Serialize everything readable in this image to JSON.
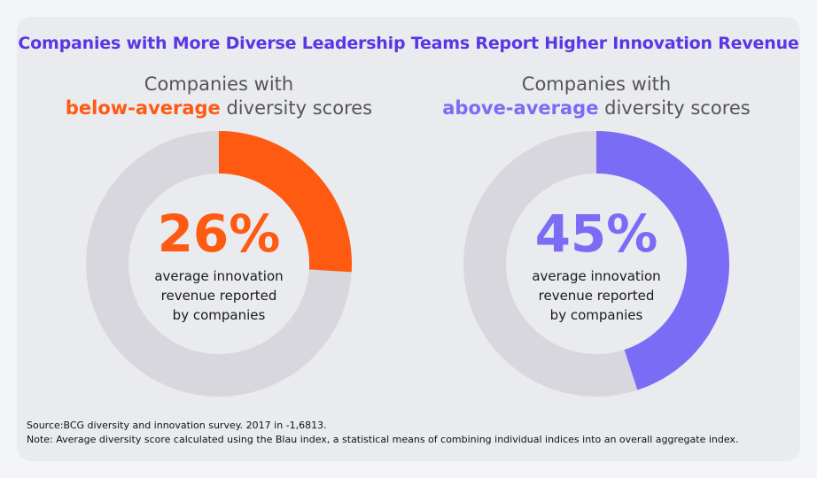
{
  "title": "Companies with More Diverse Leadership Teams Report Higher Innovation Revenue",
  "colors": {
    "title": "#5b36e6",
    "below": "#ff5a12",
    "above": "#7b6cf6",
    "track": "#d8d7dd",
    "hole": "#e9ebef"
  },
  "panels": [
    {
      "heading_line1": "Companies with",
      "highlight": "below-average",
      "heading_rest": " diversity scores",
      "value_label": "26%",
      "description": [
        "average innovation",
        "revenue reported",
        "by companies"
      ]
    },
    {
      "heading_line1": "Companies with",
      "highlight": "above-average",
      "heading_rest": " diversity scores",
      "value_label": "45%",
      "description": [
        "average innovation",
        "revenue reported",
        "by companies"
      ]
    }
  ],
  "chart_data": [
    {
      "type": "pie",
      "variant": "donut",
      "labels": [
        "below-average diversity scores"
      ],
      "values": [
        26
      ],
      "unit": "%",
      "max": 100
    },
    {
      "type": "pie",
      "variant": "donut",
      "labels": [
        "above-average diversity scores"
      ],
      "values": [
        45
      ],
      "unit": "%",
      "max": 100
    }
  ],
  "source": {
    "line1": "Source:BCG diversity and innovation survey. 2017 in -1,6813.",
    "line2": "Note: Average diversity score calculated using the Blau index, a statistical means of combining individual indices into an overall aggregate index."
  }
}
